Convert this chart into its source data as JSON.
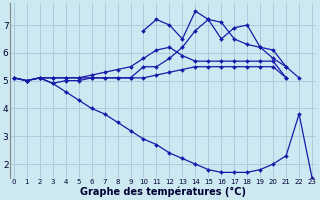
{
  "xlabel": "Graphe des températures (°C)",
  "background_color": "#cce8f0",
  "grid_color": "#aaccdd",
  "line_color": "#1a1aaa",
  "x_hours": [
    0,
    1,
    2,
    3,
    4,
    5,
    6,
    7,
    8,
    9,
    10,
    11,
    12,
    13,
    14,
    15,
    16,
    17,
    18,
    19,
    20,
    21,
    22,
    23
  ],
  "curve1": [
    5.1,
    5.0,
    5.1,
    5.1,
    5.1,
    5.1,
    5.1,
    5.1,
    5.1,
    5.1,
    5.1,
    5.2,
    5.3,
    5.4,
    5.5,
    5.5,
    5.5,
    5.5,
    5.5,
    5.5,
    5.5,
    5.1,
    null,
    null
  ],
  "curve2": [
    5.1,
    5.0,
    5.1,
    5.1,
    5.1,
    5.1,
    5.2,
    5.3,
    5.4,
    5.5,
    5.8,
    6.1,
    6.2,
    5.9,
    5.7,
    5.7,
    5.7,
    5.7,
    5.7,
    5.7,
    5.7,
    5.1,
    null,
    null
  ],
  "curve3": [
    5.1,
    5.0,
    5.1,
    4.9,
    5.0,
    5.0,
    5.1,
    5.1,
    5.1,
    5.1,
    5.5,
    5.5,
    5.8,
    6.2,
    6.8,
    7.2,
    7.1,
    6.5,
    6.3,
    6.2,
    5.8,
    5.5,
    5.1,
    null
  ],
  "curve4": [
    5.1,
    5.0,
    5.1,
    4.9,
    4.6,
    4.3,
    4.0,
    3.8,
    3.5,
    3.2,
    2.9,
    2.7,
    2.4,
    2.2,
    2.0,
    1.8,
    1.7,
    1.7,
    1.7,
    1.8,
    2.0,
    2.3,
    3.8,
    1.5
  ],
  "curve5": [
    null,
    null,
    null,
    null,
    null,
    null,
    null,
    null,
    null,
    null,
    6.8,
    7.2,
    7.0,
    6.5,
    7.5,
    7.2,
    6.5,
    6.9,
    7.0,
    6.2,
    6.1,
    5.5,
    null,
    null
  ],
  "ylim": [
    1.5,
    7.8
  ],
  "xlim": [
    -0.3,
    23.3
  ],
  "yticks": [
    2,
    3,
    4,
    5,
    6,
    7
  ],
  "xtick_labels": [
    "0",
    "1",
    "2",
    "3",
    "4",
    "5",
    "6",
    "7",
    "8",
    "9",
    "10",
    "11",
    "12",
    "13",
    "14",
    "15",
    "16",
    "17",
    "18",
    "19",
    "20",
    "21",
    "22",
    "23"
  ],
  "marker": "D",
  "markersize": 2.0,
  "linewidth": 0.9
}
